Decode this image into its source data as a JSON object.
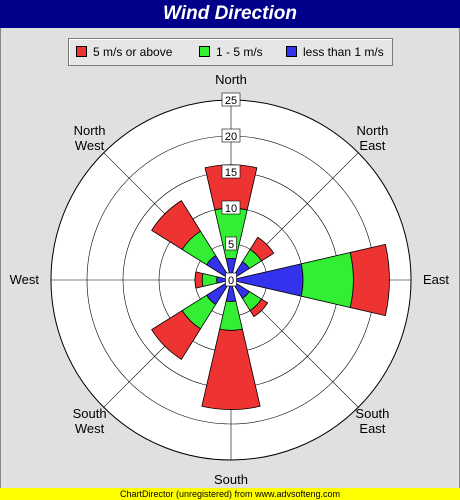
{
  "title": "Wind Direction",
  "footer_text": "ChartDirector (unregistered) from www.advsofteng.com",
  "legend": [
    {
      "label": "5 m/s or above",
      "color": "#ee3333"
    },
    {
      "label": "1 - 5 m/s",
      "color": "#33ee33"
    },
    {
      "label": "less than 1 m/s",
      "color": "#3333ee"
    }
  ],
  "chart_data": {
    "type": "polar-stacked-bar",
    "title": "Wind Direction",
    "directions": [
      "North",
      "North East",
      "East",
      "South East",
      "South",
      "South West",
      "West",
      "North West"
    ],
    "direction_labels": [
      [
        "North"
      ],
      [
        "North",
        "East"
      ],
      [
        "East"
      ],
      [
        "South",
        "East"
      ],
      [
        "South"
      ],
      [
        "South",
        "West"
      ],
      [
        "West"
      ],
      [
        "North",
        "West"
      ]
    ],
    "series": [
      {
        "name": "less than 1 m/s",
        "color": "#3333ee",
        "values": [
          3,
          3,
          10,
          3,
          3,
          4,
          2,
          4
        ]
      },
      {
        "name": "1 - 5 m/s",
        "color": "#33ee33",
        "values": [
          7,
          2,
          7,
          2,
          4,
          4,
          2,
          4
        ]
      },
      {
        "name": "5 m/s or above",
        "color": "#ee3333",
        "values": [
          6,
          2,
          5,
          1,
          11,
          5,
          1,
          5
        ]
      }
    ],
    "radial_ticks": [
      0,
      5,
      10,
      15,
      20,
      25
    ],
    "rmax": 25,
    "grid": true,
    "legend_position": "top"
  }
}
